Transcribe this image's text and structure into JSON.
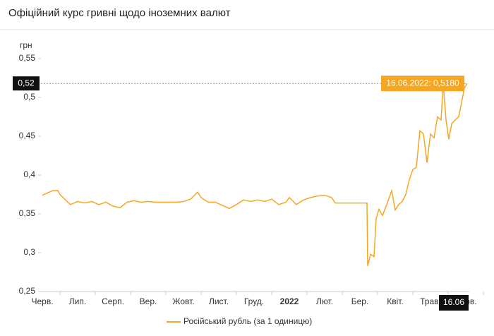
{
  "chart_data": {
    "type": "line",
    "title": "Офіційний курс гривні щодо іноземних валют",
    "y_unit": "грн",
    "x": [
      0,
      0.3,
      0.44,
      0.5,
      0.7,
      0.8,
      1,
      1.2,
      1.4,
      1.6,
      1.8,
      2,
      2.2,
      2.4,
      2.6,
      2.8,
      3,
      3.2,
      3.4,
      3.6,
      3.8,
      4,
      4.2,
      4.4,
      4.5,
      4.7,
      4.9,
      5.1,
      5.3,
      5.5,
      5.7,
      5.9,
      6.1,
      6.3,
      6.5,
      6.7,
      6.9,
      7,
      7.2,
      7.4,
      7.6,
      7.8,
      8,
      8.2,
      8.3,
      8.6,
      9.2,
      9.22,
      9.3,
      9.4,
      9.46,
      9.54,
      9.64,
      9.76,
      9.9,
      10,
      10.1,
      10.2,
      10.3,
      10.4,
      10.5,
      10.6,
      10.7,
      10.8,
      10.9,
      11,
      11.1,
      11.2,
      11.3,
      11.36,
      11.44,
      11.52,
      11.6,
      11.7,
      11.8,
      11.9,
      11.96,
      12.04
    ],
    "series": [
      {
        "name": "Російський рубль (за 1 одиницю)",
        "color": "#f5a623",
        "values": [
          0.374,
          0.38,
          0.38,
          0.375,
          0.366,
          0.362,
          0.366,
          0.364,
          0.366,
          0.362,
          0.365,
          0.36,
          0.358,
          0.365,
          0.367,
          0.365,
          0.366,
          0.365,
          0.365,
          0.365,
          0.365,
          0.366,
          0.369,
          0.378,
          0.371,
          0.365,
          0.365,
          0.361,
          0.357,
          0.362,
          0.368,
          0.366,
          0.368,
          0.366,
          0.369,
          0.362,
          0.365,
          0.371,
          0.362,
          0.368,
          0.371,
          0.373,
          0.374,
          0.371,
          0.364,
          0.364,
          0.364,
          0.283,
          0.298,
          0.295,
          0.344,
          0.356,
          0.348,
          0.362,
          0.38,
          0.355,
          0.362,
          0.366,
          0.375,
          0.394,
          0.407,
          0.41,
          0.457,
          0.453,
          0.416,
          0.453,
          0.448,
          0.475,
          0.471,
          0.518,
          0.471,
          0.446,
          0.466,
          0.471,
          0.475,
          0.498,
          0.512,
          0.518
        ]
      }
    ],
    "xlim": [
      0,
      12.1
    ],
    "xticks": [
      {
        "value": 0,
        "label": "Черв."
      },
      {
        "value": 1,
        "label": "Лип."
      },
      {
        "value": 2,
        "label": "Серп."
      },
      {
        "value": 3,
        "label": "Вер."
      },
      {
        "value": 4,
        "label": "Жовт."
      },
      {
        "value": 5,
        "label": "Лист."
      },
      {
        "value": 6,
        "label": "Груд."
      },
      {
        "value": 7,
        "label": "2022"
      },
      {
        "value": 8,
        "label": "Лют."
      },
      {
        "value": 9,
        "label": "Бер."
      },
      {
        "value": 10,
        "label": "Квіт."
      },
      {
        "value": 11,
        "label": "Трав."
      },
      {
        "value": 12,
        "label": "Черв."
      }
    ],
    "ylim": [
      0.25,
      0.55
    ],
    "yticks": [
      {
        "value": 0.25,
        "label": "0,25"
      },
      {
        "value": 0.3,
        "label": "0,3"
      },
      {
        "value": 0.35,
        "label": "0,35"
      },
      {
        "value": 0.4,
        "label": "0,4"
      },
      {
        "value": 0.45,
        "label": "0,45"
      },
      {
        "value": 0.5,
        "label": "0,5"
      },
      {
        "value": 0.55,
        "label": "0,55"
      }
    ],
    "crosshair": {
      "x_label": "16.06",
      "y_label": "0,52",
      "tooltip": "16.06.2022: 0,5180"
    },
    "legend": "bottom"
  }
}
